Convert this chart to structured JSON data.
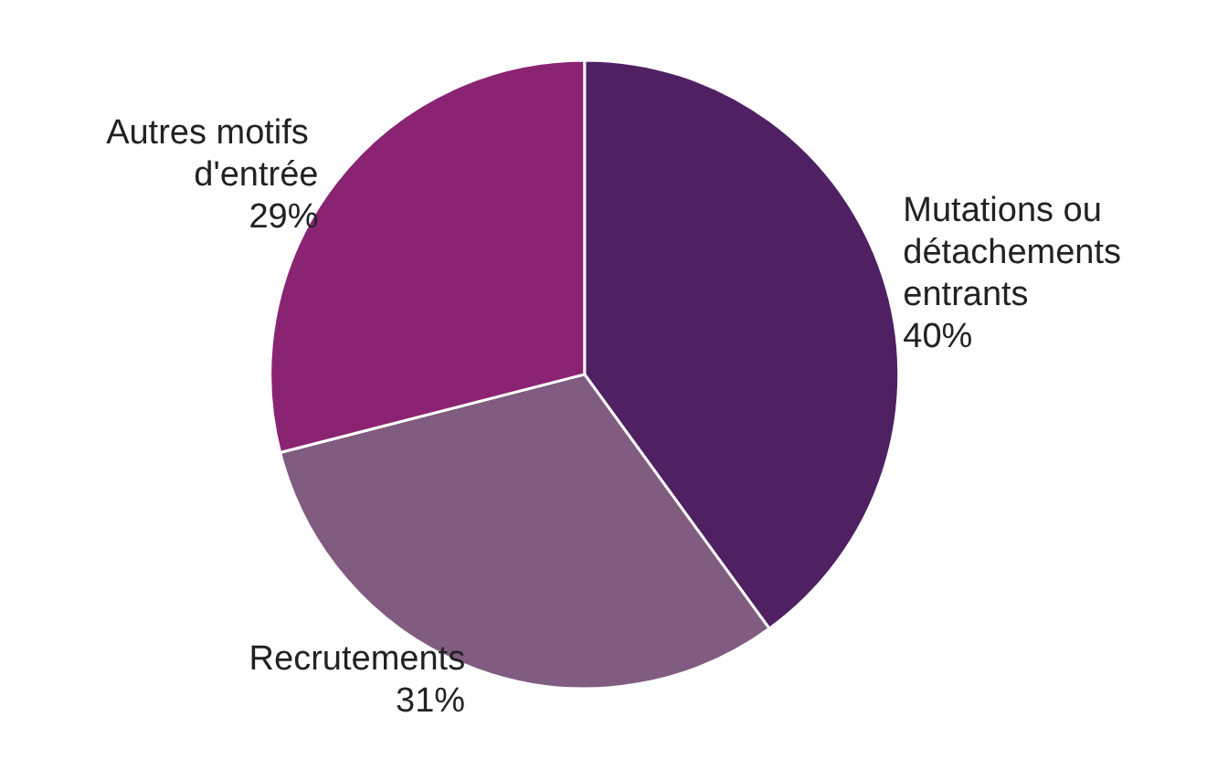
{
  "chart_data": {
    "type": "pie",
    "categories": [
      "Mutations ou détachements entrants",
      "Recrutements",
      "Autres motifs d'entrée"
    ],
    "values": [
      40,
      31,
      29
    ],
    "colors": [
      "#4f2163",
      "#805c80",
      "#8a2472"
    ],
    "value_labels": [
      "40%",
      "31%",
      "29%"
    ]
  }
}
